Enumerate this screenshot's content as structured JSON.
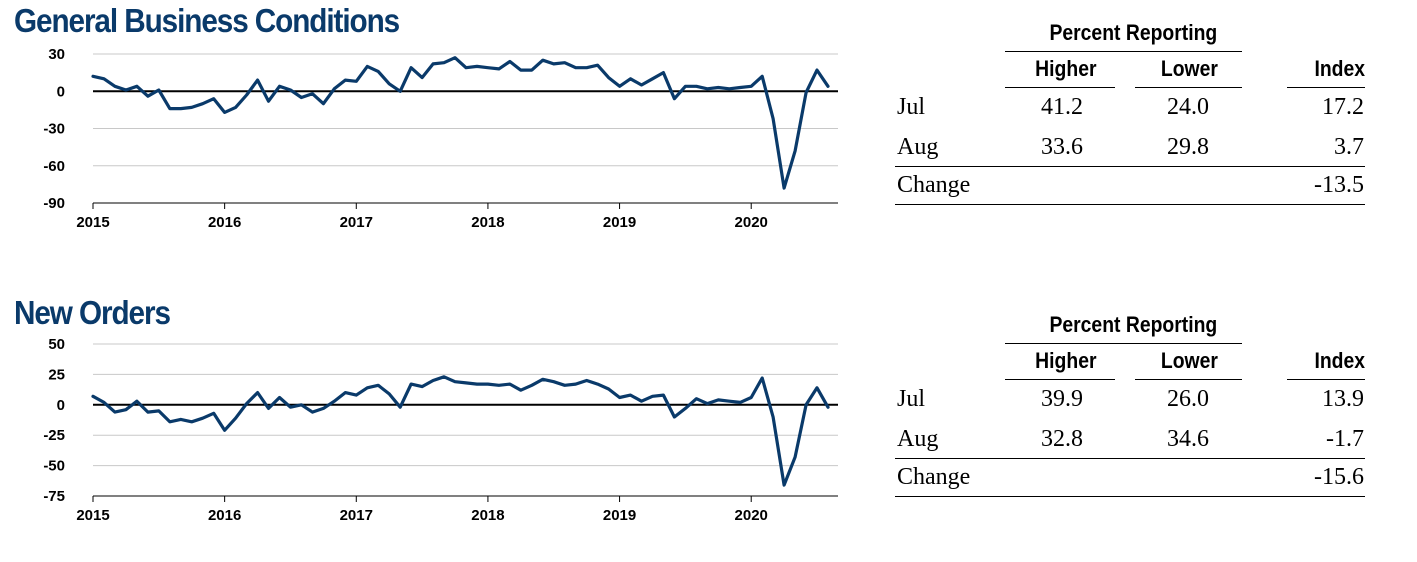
{
  "chart_data": [
    {
      "type": "line",
      "title": "General Business Conditions",
      "xlabel": "",
      "ylabel": "",
      "ylim": [
        -90,
        30
      ],
      "yticks": [
        "30",
        "0",
        "-30",
        "-60",
        "-90"
      ],
      "xticks": [
        "2015",
        "2016",
        "2017",
        "2018",
        "2019",
        "2020"
      ],
      "x_start": "2015-01",
      "x_end": "2020-08",
      "grid": true,
      "color": "#0a3a6a",
      "values": [
        12,
        10,
        4,
        1,
        4,
        -4,
        1,
        -14,
        -14,
        -13,
        -10,
        -6,
        -17,
        -13,
        -3,
        9,
        -8,
        4,
        1,
        -5,
        -2,
        -10,
        2,
        9,
        8,
        20,
        16,
        6,
        0,
        19,
        11,
        22,
        23,
        27,
        19,
        20,
        19,
        18,
        24,
        17,
        17,
        25,
        22,
        23,
        19,
        19,
        21,
        11,
        4,
        10,
        5,
        10,
        15,
        -6,
        4,
        4,
        2,
        3,
        2,
        3,
        4,
        12,
        -22,
        -78,
        -48,
        -1,
        17,
        4
      ]
    },
    {
      "type": "line",
      "title": "New Orders",
      "xlabel": "",
      "ylabel": "",
      "ylim": [
        -75,
        50
      ],
      "yticks": [
        "50",
        "25",
        "0",
        "-25",
        "-50",
        "-75"
      ],
      "xticks": [
        "2015",
        "2016",
        "2017",
        "2018",
        "2019",
        "2020"
      ],
      "x_start": "2015-01",
      "x_end": "2020-08",
      "grid": true,
      "color": "#0a3a6a",
      "values": [
        7,
        2,
        -6,
        -4,
        3,
        -6,
        -5,
        -14,
        -12,
        -14,
        -11,
        -7,
        -21,
        -11,
        1,
        10,
        -3,
        6,
        -2,
        0,
        -6,
        -3,
        3,
        10,
        8,
        14,
        16,
        9,
        -2,
        17,
        15,
        20,
        23,
        19,
        18,
        17,
        17,
        16,
        17,
        12,
        16,
        21,
        19,
        16,
        17,
        20,
        17,
        13,
        6,
        8,
        3,
        7,
        8,
        -10,
        -3,
        5,
        1,
        4,
        3,
        2,
        6,
        22,
        -10,
        -66,
        -43,
        0,
        14,
        -2
      ]
    }
  ],
  "tables": [
    {
      "group_header": "Percent Reporting",
      "columns": [
        "Higher",
        "Lower",
        "Index"
      ],
      "rows": [
        {
          "label": "Jul",
          "higher": "41.2",
          "lower": "24.0",
          "index": "17.2"
        },
        {
          "label": "Aug",
          "higher": "33.6",
          "lower": "29.8",
          "index": "3.7"
        }
      ],
      "change_label": "Change",
      "change_value": "-13.5"
    },
    {
      "group_header": "Percent Reporting",
      "columns": [
        "Higher",
        "Lower",
        "Index"
      ],
      "rows": [
        {
          "label": "Jul",
          "higher": "39.9",
          "lower": "26.0",
          "index": "13.9"
        },
        {
          "label": "Aug",
          "higher": "32.8",
          "lower": "34.6",
          "index": "-1.7"
        }
      ],
      "change_label": "Change",
      "change_value": "-15.6"
    }
  ]
}
